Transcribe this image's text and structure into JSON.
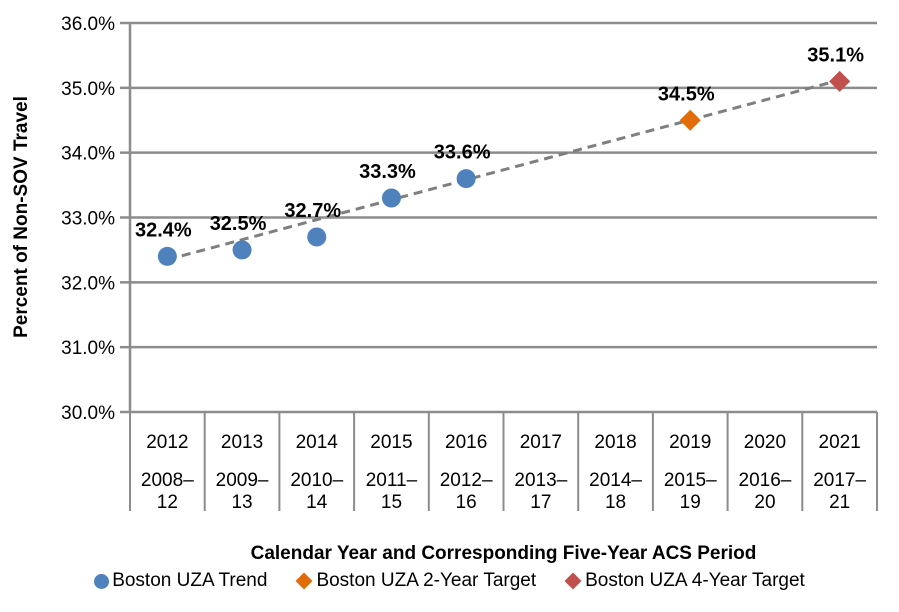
{
  "chart_data": {
    "type": "scatter",
    "title": "",
    "xlabel": "Calendar Year and Corresponding Five-Year ACS Period",
    "ylabel": "Percent of Non-SOV Travel",
    "ylim": [
      30.0,
      36.0
    ],
    "grid": "horizontal-only",
    "legend_position": "bottom",
    "yticks": [
      {
        "value": 30.0,
        "label": "30.0%"
      },
      {
        "value": 31.0,
        "label": "31.0%"
      },
      {
        "value": 32.0,
        "label": "32.0%"
      },
      {
        "value": 33.0,
        "label": "33.0%"
      },
      {
        "value": 34.0,
        "label": "34.0%"
      },
      {
        "value": 35.0,
        "label": "35.0%"
      },
      {
        "value": 36.0,
        "label": "36.0%"
      }
    ],
    "categories": [
      {
        "year": "2012",
        "period": "2008–12"
      },
      {
        "year": "2013",
        "period": "2009–13"
      },
      {
        "year": "2014",
        "period": "2010–14"
      },
      {
        "year": "2015",
        "period": "2011–15"
      },
      {
        "year": "2016",
        "period": "2012–16"
      },
      {
        "year": "2017",
        "period": "2013–17"
      },
      {
        "year": "2018",
        "period": "2014–18"
      },
      {
        "year": "2019",
        "period": "2015–19"
      },
      {
        "year": "2020",
        "period": "2016–20"
      },
      {
        "year": "2021",
        "period": "2017–21"
      }
    ],
    "series": [
      {
        "name": "Boston UZA Trend",
        "marker": "circle",
        "color": "#4F81BD",
        "label_color": "#4F81BD",
        "points": [
          {
            "category": "2012",
            "value": 32.4,
            "label": "32.4%"
          },
          {
            "category": "2013",
            "value": 32.5,
            "label": "32.5%"
          },
          {
            "category": "2014",
            "value": 32.7,
            "label": "32.7%"
          },
          {
            "category": "2015",
            "value": 33.3,
            "label": "33.3%"
          },
          {
            "category": "2016",
            "value": 33.6,
            "label": "33.6%"
          }
        ]
      },
      {
        "name": "Boston UZA 2-Year Target",
        "marker": "diamond",
        "color": "#E36C0A",
        "label_color": "#F79646",
        "points": [
          {
            "category": "2019",
            "value": 34.5,
            "label": "34.5%"
          }
        ]
      },
      {
        "name": "Boston UZA 4-Year Target",
        "marker": "diamond",
        "color": "#C0504D",
        "label_color": "#C0504D",
        "points": [
          {
            "category": "2021",
            "value": 35.1,
            "label": "35.1%"
          }
        ]
      }
    ],
    "trendline": {
      "style": "dashed",
      "color": "#7F7F7F",
      "start_category": "2012",
      "start_value": 32.35,
      "end_category": "2021",
      "end_value": 35.12
    }
  },
  "styles": {
    "axis_color": "#8C8C8C",
    "text_color": "#000000",
    "background": "#FFFFFF"
  }
}
